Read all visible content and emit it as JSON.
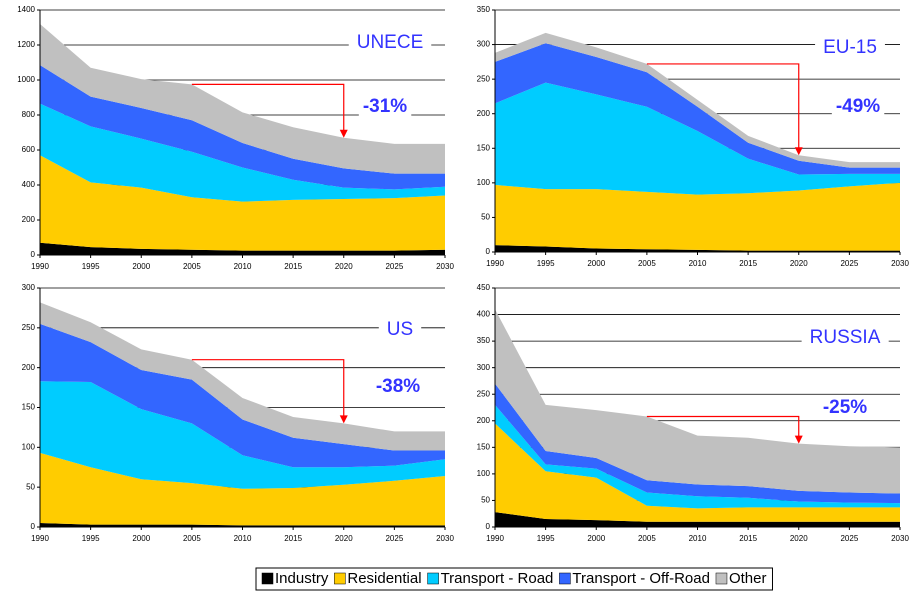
{
  "chart_data": [
    {
      "type": "area",
      "stacked": true,
      "title": "UNECE",
      "annotation": "-31%",
      "x": [
        1990,
        1995,
        2000,
        2005,
        2010,
        2015,
        2020,
        2025,
        2030
      ],
      "xlim": [
        1990,
        2030
      ],
      "xticks": [
        1990,
        1995,
        2000,
        2005,
        2010,
        2015,
        2020,
        2025,
        2030
      ],
      "ylim": [
        0,
        1400
      ],
      "yticks": [
        0,
        200,
        400,
        600,
        800,
        1000,
        1200,
        1400
      ],
      "grid": true,
      "series": [
        {
          "name": "Industry",
          "color": "#000000",
          "values": [
            70,
            45,
            35,
            30,
            25,
            25,
            25,
            25,
            30
          ]
        },
        {
          "name": "Residential",
          "color": "#ffcc00",
          "values": [
            500,
            370,
            350,
            300,
            280,
            290,
            295,
            300,
            310
          ]
        },
        {
          "name": "Transport - Road",
          "color": "#00ccff",
          "values": [
            295,
            320,
            280,
            260,
            195,
            115,
            65,
            50,
            50
          ]
        },
        {
          "name": "Transport - Off-Road",
          "color": "#3366ff",
          "values": [
            220,
            170,
            175,
            180,
            140,
            120,
            110,
            90,
            75
          ]
        },
        {
          "name": "Other",
          "color": "#c0c0c0",
          "values": [
            235,
            165,
            165,
            205,
            175,
            180,
            175,
            170,
            170
          ]
        }
      ]
    },
    {
      "type": "area",
      "stacked": true,
      "title": "EU-15",
      "annotation": "-49%",
      "x": [
        1990,
        1995,
        2000,
        2005,
        2010,
        2015,
        2020,
        2025,
        2030
      ],
      "xlim": [
        1990,
        2030
      ],
      "xticks": [
        1990,
        1995,
        2000,
        2005,
        2010,
        2015,
        2020,
        2025,
        2030
      ],
      "ylim": [
        0,
        350
      ],
      "yticks": [
        0,
        50,
        100,
        150,
        200,
        250,
        300,
        350
      ],
      "grid": true,
      "series": [
        {
          "name": "Industry",
          "color": "#000000",
          "values": [
            10,
            8,
            5,
            4,
            3,
            2,
            2,
            2,
            2
          ]
        },
        {
          "name": "Residential",
          "color": "#ffcc00",
          "values": [
            87,
            83,
            86,
            83,
            80,
            83,
            87,
            93,
            98
          ]
        },
        {
          "name": "Transport - Road",
          "color": "#00ccff",
          "values": [
            118,
            154,
            137,
            123,
            92,
            50,
            23,
            18,
            13
          ]
        },
        {
          "name": "Transport - Off-Road",
          "color": "#3366ff",
          "values": [
            60,
            57,
            54,
            50,
            35,
            23,
            20,
            9,
            9
          ]
        },
        {
          "name": "Other",
          "color": "#c0c0c0",
          "values": [
            13,
            15,
            14,
            12,
            10,
            10,
            8,
            8,
            8
          ]
        }
      ]
    },
    {
      "type": "area",
      "stacked": true,
      "title": "US",
      "annotation": "-38%",
      "x": [
        1990,
        1995,
        2000,
        2005,
        2010,
        2015,
        2020,
        2025,
        2030
      ],
      "xlim": [
        1990,
        2030
      ],
      "xticks": [
        1990,
        1995,
        2000,
        2005,
        2010,
        2015,
        2020,
        2025,
        2030
      ],
      "ylim": [
        0,
        300
      ],
      "yticks": [
        0,
        50,
        100,
        150,
        200,
        250,
        300
      ],
      "grid": true,
      "series": [
        {
          "name": "Industry",
          "color": "#000000",
          "values": [
            5,
            3,
            3,
            3,
            2,
            2,
            2,
            2,
            2
          ]
        },
        {
          "name": "Residential",
          "color": "#ffcc00",
          "values": [
            88,
            72,
            57,
            52,
            46,
            47,
            51,
            56,
            62
          ]
        },
        {
          "name": "Transport - Road",
          "color": "#00ccff",
          "values": [
            90,
            107,
            88,
            75,
            42,
            26,
            22,
            19,
            21
          ]
        },
        {
          "name": "Transport - Off-Road",
          "color": "#3366ff",
          "values": [
            72,
            50,
            49,
            55,
            45,
            37,
            29,
            19,
            11
          ]
        },
        {
          "name": "Other",
          "color": "#c0c0c0",
          "values": [
            27,
            25,
            26,
            25,
            27,
            26,
            26,
            24,
            24
          ]
        }
      ]
    },
    {
      "type": "area",
      "stacked": true,
      "title": "RUSSIA",
      "annotation": "-25%",
      "x": [
        1990,
        1995,
        2000,
        2005,
        2010,
        2015,
        2020,
        2025,
        2030
      ],
      "xlim": [
        1990,
        2030
      ],
      "xticks": [
        1990,
        1995,
        2000,
        2005,
        2010,
        2015,
        2020,
        2025,
        2030
      ],
      "ylim": [
        0,
        450
      ],
      "yticks": [
        0,
        50,
        100,
        150,
        200,
        250,
        300,
        350,
        400,
        450
      ],
      "grid": true,
      "series": [
        {
          "name": "Industry",
          "color": "#000000",
          "values": [
            28,
            15,
            13,
            10,
            10,
            10,
            10,
            10,
            10
          ]
        },
        {
          "name": "Residential",
          "color": "#ffcc00",
          "values": [
            167,
            90,
            80,
            30,
            25,
            27,
            27,
            27,
            27
          ]
        },
        {
          "name": "Transport - Road",
          "color": "#00ccff",
          "values": [
            35,
            13,
            17,
            25,
            23,
            18,
            11,
            9,
            8
          ]
        },
        {
          "name": "Transport - Off-Road",
          "color": "#3366ff",
          "values": [
            40,
            25,
            20,
            23,
            22,
            22,
            20,
            19,
            18
          ]
        },
        {
          "name": "Other",
          "color": "#c0c0c0",
          "values": [
            140,
            87,
            90,
            120,
            92,
            91,
            89,
            87,
            87
          ]
        }
      ]
    }
  ]
}
